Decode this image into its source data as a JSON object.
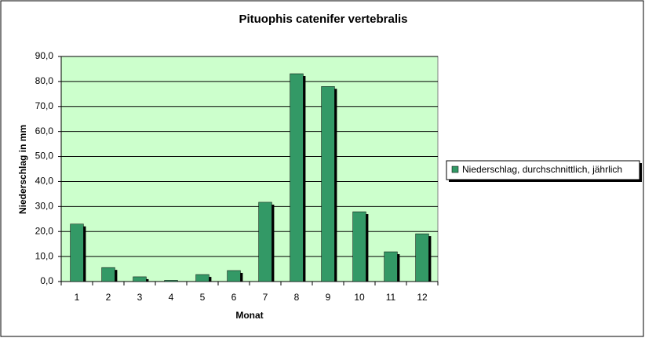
{
  "chart_data": {
    "type": "bar",
    "title": "Pituophis catenifer vertebralis",
    "x_label": "Monat",
    "y_label": "Niederschlag in mm",
    "categories": [
      "1",
      "2",
      "3",
      "4",
      "5",
      "6",
      "7",
      "8",
      "9",
      "10",
      "11",
      "12"
    ],
    "series": [
      {
        "name": "Niederschlag, durchschnittlich, jährlich",
        "color": "#339966",
        "values": [
          23,
          5.6,
          1.9,
          0.5,
          2.8,
          4.4,
          31.7,
          83.1,
          78,
          27.9,
          11.9,
          19.1
        ]
      }
    ],
    "ylim": [
      0,
      90
    ],
    "yticks": [
      {
        "value": 0,
        "label": "0,0"
      },
      {
        "value": 10,
        "label": "10,0"
      },
      {
        "value": 20,
        "label": "20,0"
      },
      {
        "value": 30,
        "label": "30,0"
      },
      {
        "value": 40,
        "label": "40,0"
      },
      {
        "value": 50,
        "label": "50,0"
      },
      {
        "value": 60,
        "label": "60,0"
      },
      {
        "value": 70,
        "label": "70,0"
      },
      {
        "value": 80,
        "label": "80,0"
      },
      {
        "value": 90,
        "label": "90,0"
      }
    ],
    "grid": true,
    "plot_background": "#ccffcc",
    "legend": "right"
  }
}
